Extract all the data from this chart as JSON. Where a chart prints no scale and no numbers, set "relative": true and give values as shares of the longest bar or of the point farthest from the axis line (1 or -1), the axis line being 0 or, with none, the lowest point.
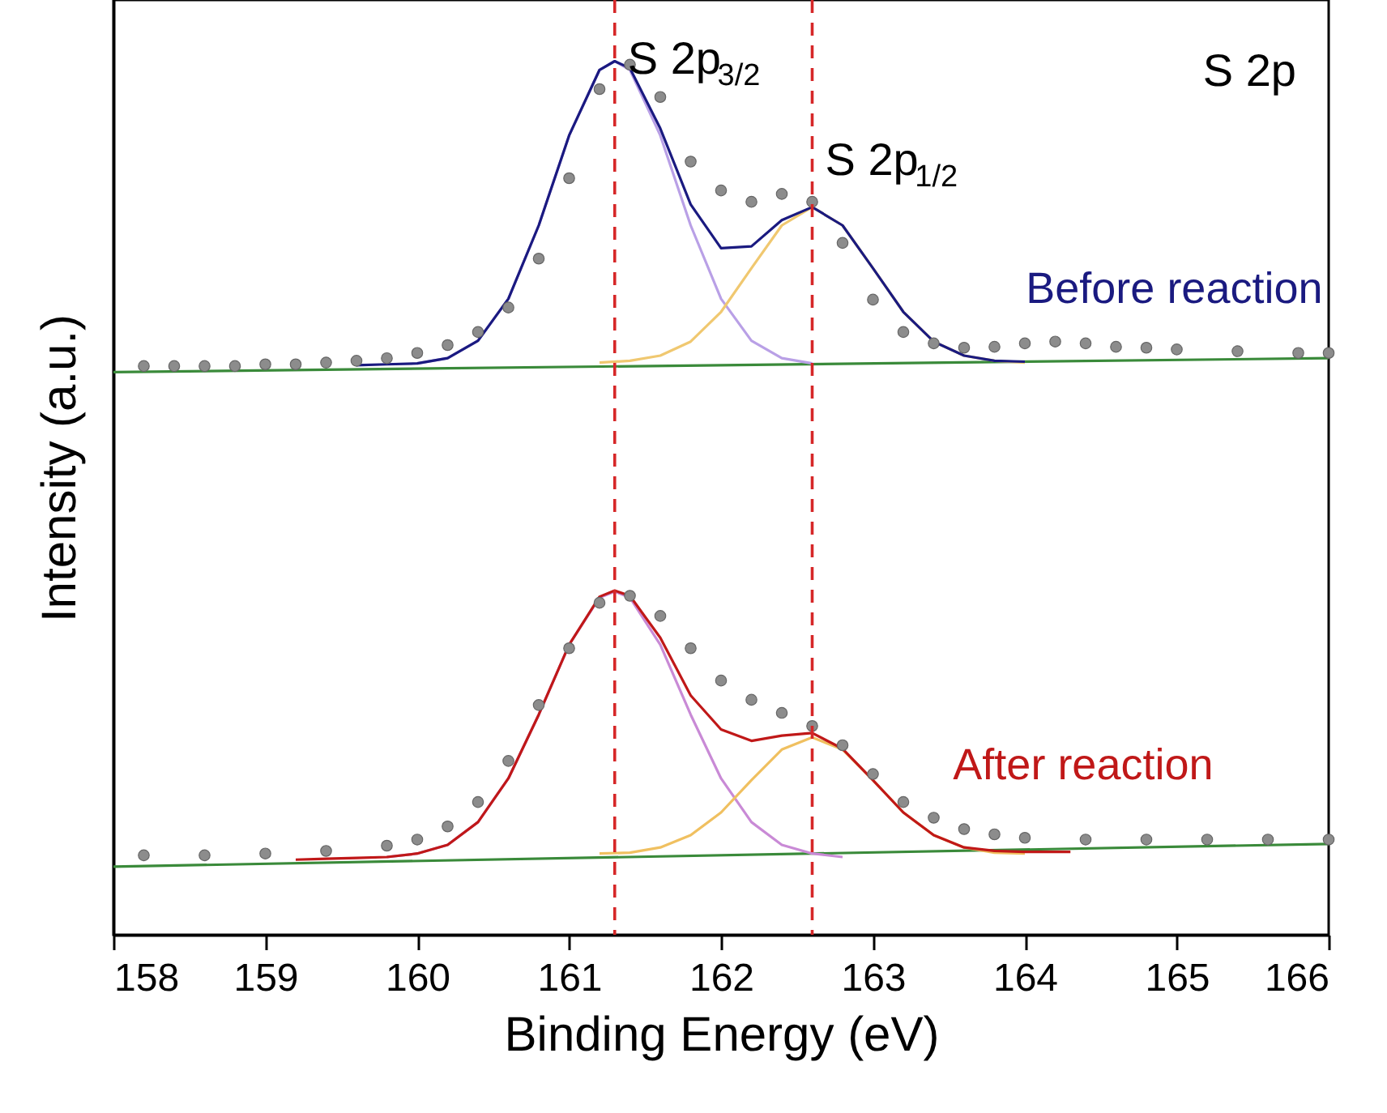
{
  "chart_data": {
    "type": "line",
    "relative": true,
    "xlabel": "Binding Energy (eV)",
    "ylabel": "Intensity (a.u.)",
    "xlim": [
      158,
      166
    ],
    "xticks": [
      158,
      159,
      160,
      161,
      162,
      163,
      164,
      165,
      166
    ],
    "grid": false,
    "series": [
      {
        "name": null,
        "color": "#3a8a3a",
        "x": [
          158,
          166
        ],
        "values": [
          0.644,
          0.66
        ]
      },
      {
        "name": null,
        "color": "#b9a0e6",
        "x": [
          160.0,
          160.2,
          160.4,
          160.6,
          160.8,
          161.0,
          161.2,
          161.3,
          161.4,
          161.6,
          161.8,
          162.0,
          162.2,
          162.4,
          162.6
        ],
        "values": [
          0.654,
          0.66,
          0.68,
          0.728,
          0.812,
          0.915,
          0.99,
          1.0,
          0.99,
          0.915,
          0.812,
          0.728,
          0.68,
          0.66,
          0.654
        ]
      },
      {
        "name": null,
        "color": "#f0c870",
        "x": [
          161.2,
          161.4,
          161.6,
          161.8,
          162.0,
          162.2,
          162.4,
          162.6,
          162.8,
          163.0,
          163.2,
          163.4,
          163.6,
          163.8,
          164.0
        ],
        "values": [
          0.655,
          0.657,
          0.663,
          0.679,
          0.713,
          0.763,
          0.812,
          0.833,
          0.812,
          0.763,
          0.713,
          0.679,
          0.663,
          0.657,
          0.655
        ]
      },
      {
        "name": "Before reaction",
        "color": "#1a1a80",
        "x": [
          159.6,
          159.8,
          160.0,
          160.2,
          160.4,
          160.6,
          160.8,
          161.0,
          161.2,
          161.3,
          161.4,
          161.6,
          161.8,
          162.0,
          162.2,
          162.4,
          162.6,
          162.8,
          163.0,
          163.2,
          163.4,
          163.6,
          163.8,
          164.0
        ],
        "values": [
          0.652,
          0.653,
          0.654,
          0.66,
          0.68,
          0.728,
          0.812,
          0.915,
          0.99,
          1.0,
          0.992,
          0.923,
          0.836,
          0.786,
          0.788,
          0.818,
          0.833,
          0.812,
          0.763,
          0.713,
          0.679,
          0.663,
          0.657,
          0.656
        ]
      },
      {
        "name": null,
        "type": "scatter",
        "color": "#8c8c8c",
        "marker": "circle",
        "x": [
          158.2,
          158.4,
          158.6,
          158.8,
          159.0,
          159.2,
          159.4,
          159.6,
          159.8,
          160.0,
          160.2,
          160.4,
          160.6,
          160.8,
          161.0,
          161.2,
          161.4,
          161.6,
          161.8,
          162.0,
          162.2,
          162.4,
          162.6,
          162.8,
          163.0,
          163.2,
          163.4,
          163.6,
          163.8,
          164.0,
          164.2,
          164.4,
          164.6,
          164.8,
          165.0,
          165.4,
          165.8,
          166.0
        ],
        "values": [
          0.651,
          0.651,
          0.651,
          0.651,
          0.653,
          0.653,
          0.655,
          0.657,
          0.66,
          0.666,
          0.675,
          0.69,
          0.718,
          0.774,
          0.866,
          0.968,
          0.996,
          0.959,
          0.885,
          0.852,
          0.839,
          0.848,
          0.839,
          0.792,
          0.727,
          0.69,
          0.677,
          0.672,
          0.673,
          0.677,
          0.679,
          0.677,
          0.673,
          0.672,
          0.67,
          0.668,
          0.666,
          0.666
        ]
      },
      {
        "name": null,
        "color": "#3a8a3a",
        "x": [
          158,
          166
        ],
        "values": [
          0.078,
          0.104
        ]
      },
      {
        "name": null,
        "color": "#c98ad6",
        "x": [
          159.8,
          160.0,
          160.2,
          160.4,
          160.6,
          160.8,
          161.0,
          161.2,
          161.3,
          161.4,
          161.6,
          161.8,
          162.0,
          162.2,
          162.4,
          162.6,
          162.8
        ],
        "values": [
          0.089,
          0.093,
          0.103,
          0.129,
          0.179,
          0.252,
          0.332,
          0.386,
          0.393,
          0.386,
          0.332,
          0.252,
          0.179,
          0.129,
          0.103,
          0.093,
          0.089
        ]
      },
      {
        "name": null,
        "color": "#f0c060",
        "x": [
          161.2,
          161.4,
          161.6,
          161.8,
          162.0,
          162.2,
          162.4,
          162.6,
          162.8,
          163.0,
          163.2,
          163.4,
          163.6,
          163.8,
          164.0
        ],
        "values": [
          0.093,
          0.094,
          0.1,
          0.114,
          0.14,
          0.177,
          0.212,
          0.226,
          0.212,
          0.177,
          0.14,
          0.114,
          0.1,
          0.094,
          0.093
        ]
      },
      {
        "name": "After reaction",
        "color": "#c01818",
        "x": [
          159.2,
          159.4,
          159.6,
          159.8,
          160.0,
          160.2,
          160.4,
          160.6,
          160.8,
          161.0,
          161.2,
          161.3,
          161.4,
          161.6,
          161.8,
          162.0,
          162.2,
          162.4,
          162.6,
          162.8,
          163.0,
          163.2,
          163.4,
          163.6,
          163.8,
          164.0,
          164.3
        ],
        "values": [
          0.086,
          0.087,
          0.088,
          0.089,
          0.093,
          0.103,
          0.129,
          0.179,
          0.252,
          0.332,
          0.387,
          0.394,
          0.388,
          0.34,
          0.274,
          0.235,
          0.222,
          0.228,
          0.231,
          0.213,
          0.177,
          0.14,
          0.114,
          0.1,
          0.096,
          0.095,
          0.095
        ]
      },
      {
        "name": null,
        "type": "scatter",
        "color": "#8c8c8c",
        "marker": "circle",
        "x": [
          158.2,
          158.6,
          159.0,
          159.4,
          159.8,
          160.0,
          160.2,
          160.4,
          160.6,
          160.8,
          161.0,
          161.2,
          161.4,
          161.6,
          161.8,
          162.0,
          162.2,
          162.4,
          162.6,
          162.8,
          163.0,
          163.2,
          163.4,
          163.6,
          163.8,
          164.0,
          164.4,
          164.8,
          165.2,
          165.6,
          166.0
        ],
        "values": [
          0.091,
          0.091,
          0.093,
          0.096,
          0.102,
          0.109,
          0.124,
          0.152,
          0.199,
          0.263,
          0.328,
          0.38,
          0.388,
          0.365,
          0.328,
          0.291,
          0.269,
          0.254,
          0.239,
          0.217,
          0.184,
          0.152,
          0.134,
          0.121,
          0.115,
          0.111,
          0.109,
          0.109,
          0.109,
          0.109,
          0.109
        ]
      }
    ],
    "ref_lines": [
      {
        "axis": "x",
        "value": 161.3,
        "color": "#d62728",
        "line_style": "dashed"
      },
      {
        "axis": "x",
        "value": 162.6,
        "color": "#d62728",
        "line_style": "dashed"
      }
    ],
    "annotations": [
      {
        "text": "S 2p$_{3/2}$",
        "x": 161.3,
        "y": 1.0
      },
      {
        "text": "S 2p$_{1/2}$",
        "x": 162.6,
        "y": 0.885
      },
      "S 2p"
    ]
  }
}
